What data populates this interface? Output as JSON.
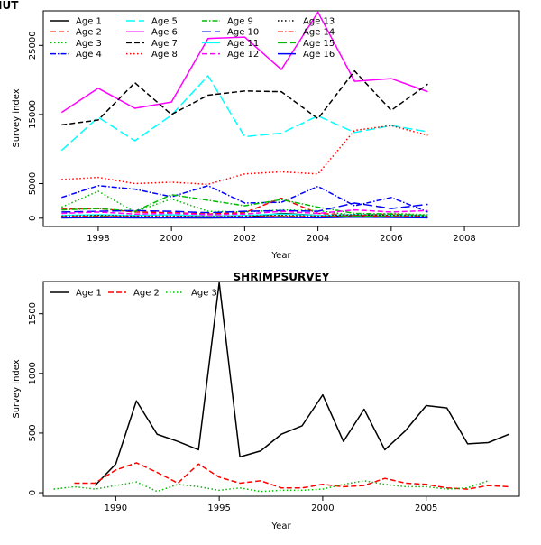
{
  "chart_data": [
    {
      "type": "line",
      "title": "IUT",
      "xlabel": "Year",
      "ylabel": "Survey index",
      "xlim": [
        1996.5,
        2009.5
      ],
      "ylim": [
        -1200,
        30000
      ],
      "xticks": [
        1998,
        2000,
        2002,
        2004,
        2006,
        2008
      ],
      "yticks": [
        0,
        5000,
        15000,
        25000
      ],
      "grid": false,
      "legend_position": "top-left",
      "x": [
        1997,
        1998,
        1999,
        2000,
        2001,
        2002,
        2003,
        2004,
        2005,
        2006,
        2007
      ],
      "series": [
        {
          "name": "Age 1",
          "color": "#000000",
          "dash": "solid",
          "values": [
            50,
            80,
            60,
            60,
            40,
            100,
            700,
            400,
            200,
            300,
            250
          ]
        },
        {
          "name": "Age 2",
          "color": "#ff0000",
          "dash": "dashed",
          "values": [
            1300,
            1400,
            900,
            800,
            600,
            800,
            2900,
            700,
            400,
            600,
            300
          ]
        },
        {
          "name": "Age 3",
          "color": "#00bb00",
          "dash": "dotted",
          "values": [
            1600,
            3900,
            900,
            2800,
            1000,
            900,
            1200,
            1100,
            400,
            700,
            500
          ]
        },
        {
          "name": "Age 4",
          "color": "#0000ff",
          "dash": "dashdot",
          "values": [
            3000,
            4700,
            4200,
            3100,
            4700,
            2200,
            2300,
            4600,
            1800,
            3000,
            900
          ]
        },
        {
          "name": "Age 5",
          "color": "#00ffff",
          "dash": "longdash",
          "values": [
            9800,
            14600,
            11200,
            14900,
            20600,
            11800,
            12300,
            14800,
            12400,
            13400,
            12500
          ]
        },
        {
          "name": "Age 6",
          "color": "#ff00ff",
          "dash": "solid",
          "values": [
            15300,
            18800,
            15900,
            16800,
            26000,
            26200,
            21500,
            29800,
            19800,
            20200,
            18300
          ]
        },
        {
          "name": "Age 7",
          "color": "#000000",
          "dash": "dashed",
          "values": [
            13500,
            14200,
            19600,
            15000,
            17800,
            18400,
            18300,
            14400,
            21300,
            15600,
            19400
          ]
        },
        {
          "name": "Age 8",
          "color": "#ff0000",
          "dash": "dotted",
          "values": [
            5600,
            5900,
            5000,
            5200,
            4900,
            6400,
            6700,
            6400,
            12700,
            13400,
            12000
          ]
        },
        {
          "name": "Age 9",
          "color": "#00bb00",
          "dash": "dashdot",
          "values": [
            1200,
            1400,
            1000,
            3400,
            2600,
            1800,
            2700,
            1600,
            700,
            600,
            400
          ]
        },
        {
          "name": "Age 10",
          "color": "#0000ff",
          "dash": "longdash",
          "values": [
            900,
            1000,
            1100,
            1000,
            800,
            1000,
            1100,
            1000,
            2200,
            1400,
            2000
          ]
        },
        {
          "name": "Age 11",
          "color": "#00ffff",
          "dash": "solid",
          "values": [
            400,
            500,
            400,
            500,
            300,
            400,
            600,
            400,
            500,
            400,
            300
          ]
        },
        {
          "name": "Age 12",
          "color": "#ff00ff",
          "dash": "dashed",
          "values": [
            700,
            900,
            600,
            700,
            500,
            600,
            1000,
            700,
            1200,
            900,
            1100
          ]
        },
        {
          "name": "Age 13",
          "color": "#000000",
          "dash": "dotted",
          "values": [
            300,
            400,
            300,
            300,
            200,
            300,
            400,
            300,
            500,
            400,
            300
          ]
        },
        {
          "name": "Age 14",
          "color": "#ff0000",
          "dash": "dashdot",
          "values": [
            200,
            300,
            200,
            200,
            200,
            200,
            300,
            200,
            400,
            300,
            200
          ]
        },
        {
          "name": "Age 15",
          "color": "#00bb00",
          "dash": "longdash",
          "values": [
            100,
            200,
            100,
            100,
            100,
            100,
            200,
            100,
            300,
            200,
            100
          ]
        },
        {
          "name": "Age 16",
          "color": "#0000ff",
          "dash": "solid",
          "values": [
            50,
            100,
            50,
            50,
            50,
            50,
            100,
            50,
            150,
            100,
            50
          ]
        }
      ]
    },
    {
      "type": "line",
      "title": "SHRIMPSURVEY",
      "xlabel": "Year",
      "ylabel": "Survey index",
      "xlim": [
        1986.5,
        2009.5
      ],
      "ylim": [
        -30,
        1770
      ],
      "xticks": [
        1990,
        1995,
        2000,
        2005
      ],
      "yticks": [
        0,
        500,
        1000,
        1500
      ],
      "grid": false,
      "legend_position": "top-left",
      "x": [
        1987,
        1988,
        1989,
        1990,
        1991,
        1992,
        1993,
        1994,
        1995,
        1996,
        1997,
        1998,
        1999,
        2000,
        2001,
        2002,
        2003,
        2004,
        2005,
        2006,
        2007,
        2008,
        2009
      ],
      "series": [
        {
          "name": "Age 1",
          "color": "#000000",
          "dash": "solid",
          "values": [
            null,
            null,
            60,
            240,
            770,
            490,
            430,
            360,
            1760,
            300,
            350,
            490,
            560,
            820,
            430,
            700,
            360,
            520,
            730,
            710,
            410,
            420,
            490
          ]
        },
        {
          "name": "Age 2",
          "color": "#ff0000",
          "dash": "dashed",
          "values": [
            null,
            80,
            80,
            190,
            250,
            170,
            80,
            240,
            130,
            80,
            100,
            40,
            40,
            70,
            50,
            60,
            120,
            80,
            70,
            40,
            30,
            60,
            50
          ]
        },
        {
          "name": "Age 3",
          "color": "#00bb00",
          "dash": "dotted",
          "values": [
            30,
            50,
            30,
            60,
            90,
            10,
            70,
            50,
            20,
            40,
            10,
            20,
            20,
            30,
            70,
            100,
            70,
            50,
            50,
            30,
            40,
            100,
            null
          ]
        }
      ]
    }
  ]
}
